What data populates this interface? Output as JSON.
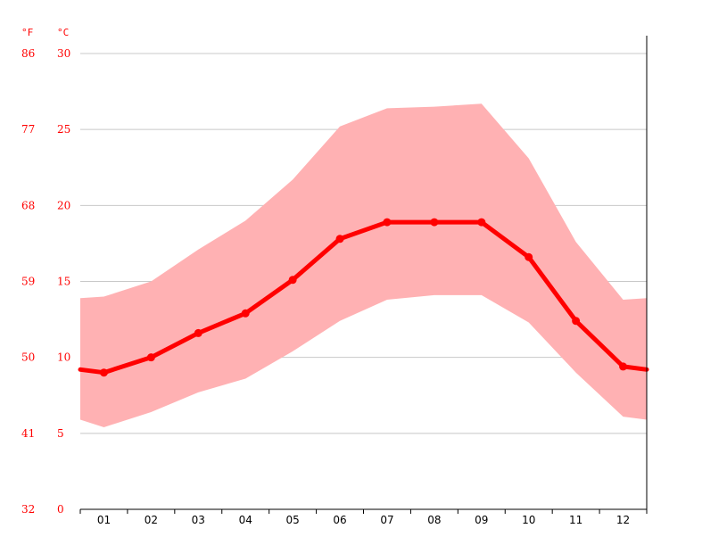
{
  "chart_data": {
    "type": "line",
    "title": "",
    "unit_labels": {
      "fahrenheit": "°F",
      "celsius": "°C"
    },
    "categories": [
      "01",
      "02",
      "03",
      "04",
      "05",
      "06",
      "07",
      "08",
      "09",
      "10",
      "11",
      "12"
    ],
    "y_ticks_celsius": [
      0,
      5,
      10,
      15,
      20,
      25,
      30
    ],
    "y_ticks_fahrenheit": [
      32,
      41,
      50,
      59,
      68,
      77,
      86
    ],
    "ylim": [
      0,
      30
    ],
    "grid": true,
    "x_extends_half_month": true,
    "edge_values": {
      "mean_left": 9.2,
      "mean_right": 9.2,
      "min_left": 5.9,
      "min_right": 5.9,
      "max_left": 13.9,
      "max_right": 13.9
    },
    "series": [
      {
        "values": [
          9.0,
          10.0,
          11.6,
          12.9,
          15.1,
          17.8,
          18.9,
          18.9,
          18.9,
          16.6,
          12.4,
          9.4
        ]
      },
      {
        "values": [
          5.4,
          6.4,
          7.7,
          8.6,
          10.4,
          12.4,
          13.8,
          14.1,
          14.1,
          12.3,
          9.0,
          6.1
        ]
      },
      {
        "values": [
          14.0,
          15.0,
          17.1,
          19.0,
          21.7,
          25.2,
          26.4,
          26.5,
          26.7,
          23.1,
          17.6,
          13.8
        ]
      }
    ],
    "colors": {
      "mean_line": "#ff0000",
      "band_fill": "#ffb1b3",
      "grid": "#c8c8c8",
      "axis": "#000000",
      "tick_label": "#ff0000"
    }
  }
}
